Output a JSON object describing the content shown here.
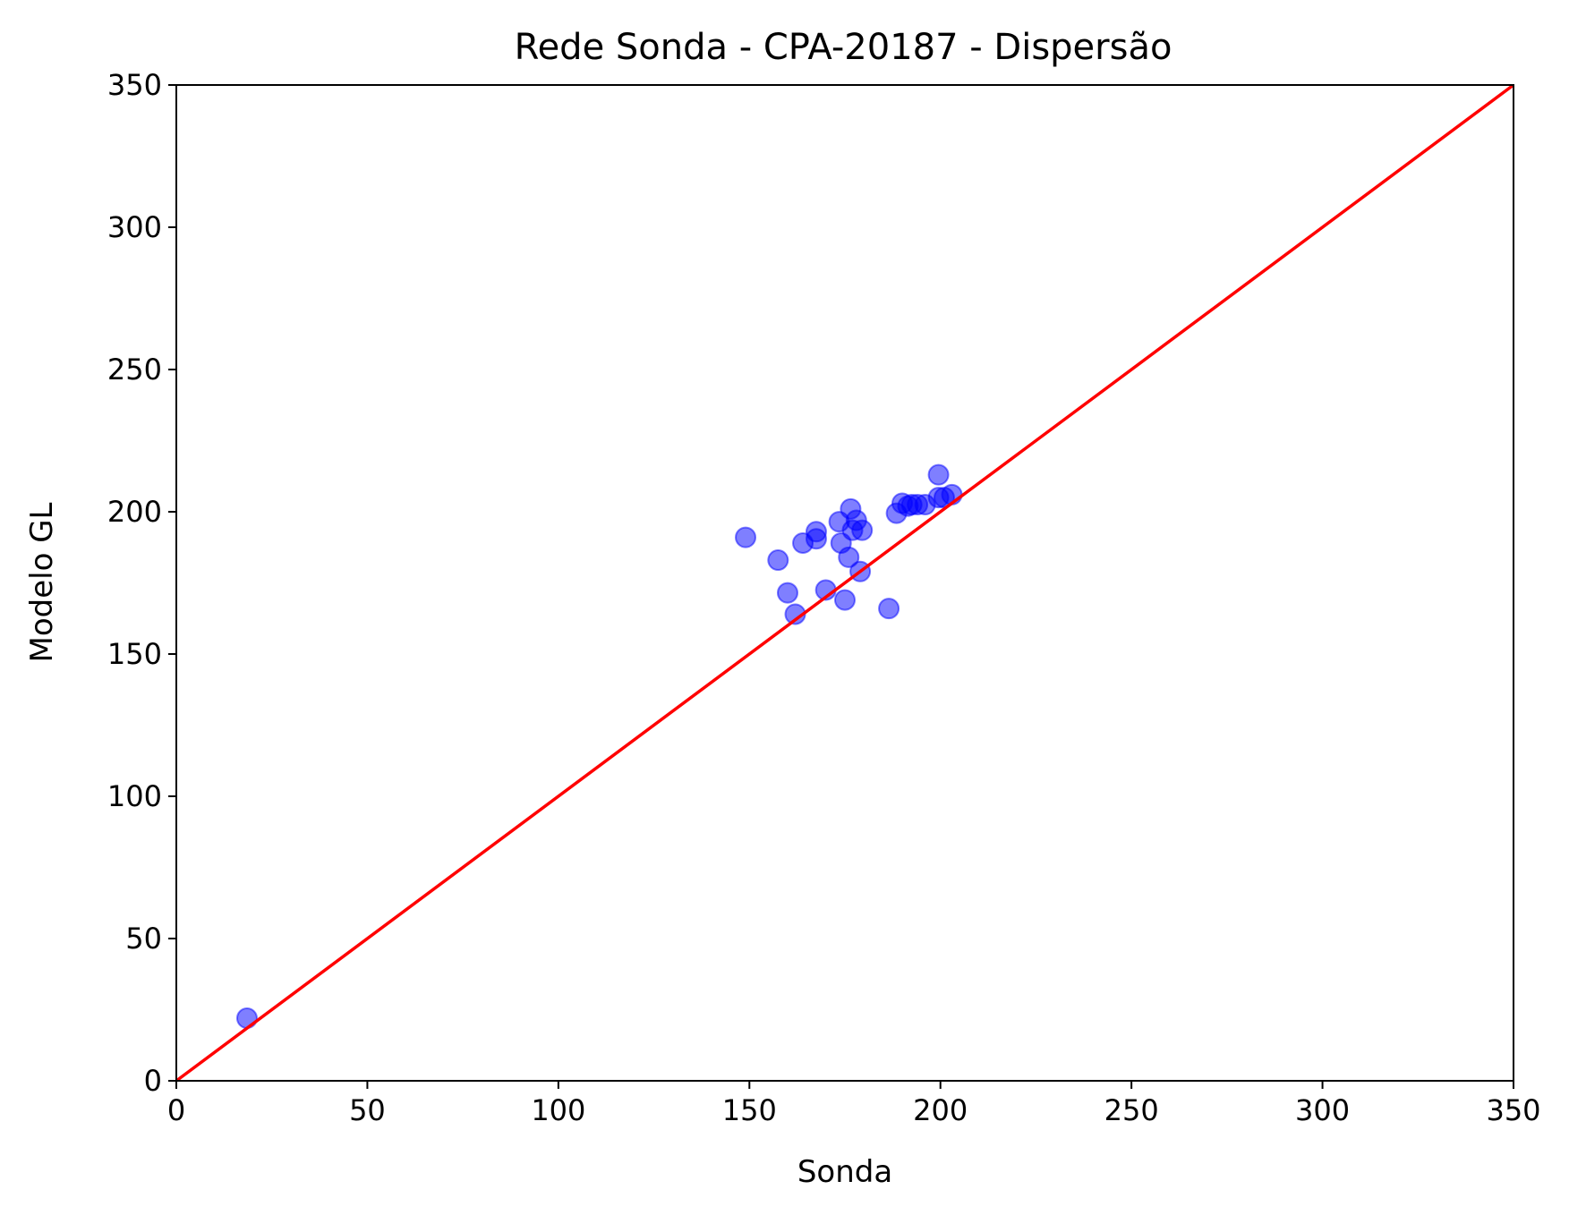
{
  "chart_data": {
    "type": "scatter",
    "title": "Rede Sonda - CPA-20187 - Dispersão",
    "xlabel": "Sonda",
    "ylabel": "Modelo GL",
    "xlim": [
      0,
      350
    ],
    "ylim": [
      0,
      350
    ],
    "xticks": [
      "0",
      "50",
      "100",
      "150",
      "200",
      "250",
      "300",
      "350"
    ],
    "yticks": [
      "0",
      "50",
      "100",
      "150",
      "200",
      "250",
      "300",
      "350"
    ],
    "grid": false,
    "legend": "none",
    "colors": {
      "points": "#0000ff",
      "reference_line": "#ff0000",
      "axes": "#000000"
    },
    "series": [
      {
        "points": [
          [
            18.5,
            22
          ],
          [
            149,
            191
          ],
          [
            157.5,
            183
          ],
          [
            160,
            171.5
          ],
          [
            162,
            164
          ],
          [
            164,
            189
          ],
          [
            167.5,
            190.5
          ],
          [
            167.5,
            193
          ],
          [
            170,
            172.5
          ],
          [
            173.5,
            196.5
          ],
          [
            174,
            189
          ],
          [
            175,
            169
          ],
          [
            176,
            184
          ],
          [
            176.5,
            201
          ],
          [
            177,
            193.5
          ],
          [
            178,
            197
          ],
          [
            179,
            179
          ],
          [
            179.5,
            193.5
          ],
          [
            186.5,
            166
          ],
          [
            188.5,
            199.5
          ],
          [
            190,
            203
          ],
          [
            191.5,
            202
          ],
          [
            192.5,
            202.5
          ],
          [
            194,
            202.5
          ],
          [
            196,
            202.5
          ],
          [
            199.5,
            213
          ],
          [
            199.5,
            205
          ],
          [
            201,
            205
          ],
          [
            203,
            206
          ]
        ]
      }
    ],
    "reference_line": {
      "from": [
        0,
        0
      ],
      "to": [
        350,
        350
      ]
    }
  }
}
